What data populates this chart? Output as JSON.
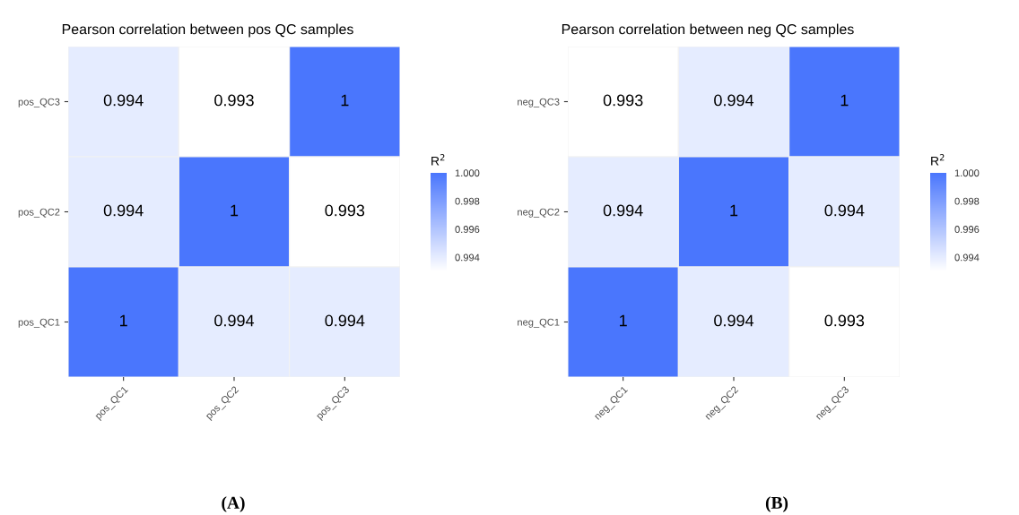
{
  "chart_data": [
    {
      "type": "heatmap",
      "title": "Pearson correlation between pos QC samples",
      "clabel": "R$^{2}$",
      "categories": [
        "pos_QC1",
        "pos_QC2",
        "pos_QC3"
      ],
      "y_categories": [
        "pos_QC3",
        "pos_QC2",
        "pos_QC1"
      ],
      "cells": [
        [
          0.994,
          0.993,
          1
        ],
        [
          0.994,
          1,
          0.993
        ],
        [
          1,
          0.994,
          0.994
        ]
      ],
      "colors": [
        "#ffffff",
        "#4a76fd"
      ],
      "clim": [
        0.993,
        1.0
      ],
      "cticks": [
        {
          "value": 0.994,
          "label": "0.994"
        },
        {
          "value": 0.996,
          "label": "0.996"
        },
        {
          "value": 0.998,
          "label": "0.998"
        },
        {
          "value": 1.0,
          "label": "1.000"
        }
      ],
      "data_labels": true,
      "annotations": [
        "(A)"
      ]
    },
    {
      "type": "heatmap",
      "title": "Pearson correlation between neg QC samples",
      "clabel": "R$^{2}$",
      "categories": [
        "neg_QC1",
        "neg_QC2",
        "neg_QC3"
      ],
      "y_categories": [
        "neg_QC3",
        "neg_QC2",
        "neg_QC1"
      ],
      "cells": [
        [
          0.993,
          0.994,
          1
        ],
        [
          0.994,
          1,
          0.994
        ],
        [
          1,
          0.994,
          0.993
        ]
      ],
      "colors": [
        "#ffffff",
        "#4a76fd"
      ],
      "clim": [
        0.993,
        1.0
      ],
      "cticks": [
        {
          "value": 0.994,
          "label": "0.994"
        },
        {
          "value": 0.996,
          "label": "0.996"
        },
        {
          "value": 0.998,
          "label": "0.998"
        },
        {
          "value": 1.0,
          "label": "1.000"
        }
      ],
      "data_labels": true,
      "annotations": [
        "(B)"
      ]
    }
  ]
}
